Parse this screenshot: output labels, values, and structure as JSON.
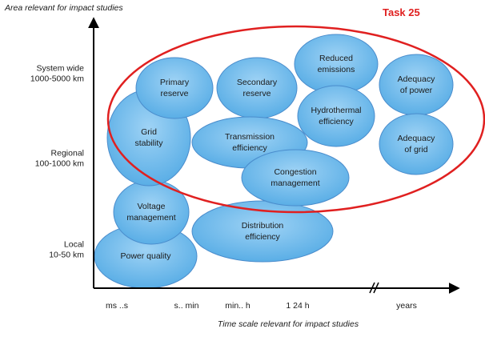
{
  "y_axis": {
    "title": "Area relevant for impact studies",
    "levels": [
      [
        "System wide",
        "1000-5000 km"
      ],
      [
        "Regional",
        "100-1000 km"
      ],
      [
        "Local",
        "10-50 km"
      ]
    ]
  },
  "x_axis": {
    "title": "Time scale relevant for impact studies",
    "levels": [
      "ms ..s",
      "s.. min",
      "min.. h",
      "1   24 h",
      "years"
    ]
  },
  "highlight": {
    "label": "Task 25"
  },
  "nodes": [
    {
      "label": [
        "Power quality"
      ]
    },
    {
      "label": [
        "Voltage",
        "management"
      ]
    },
    {
      "label": [
        "Distribution",
        "efficiency"
      ]
    },
    {
      "label": [
        "Grid",
        "stability"
      ]
    },
    {
      "label": [
        "Primary",
        "reserve"
      ]
    },
    {
      "label": [
        "Secondary",
        "reserve"
      ]
    },
    {
      "label": [
        "Transmission",
        "efficiency"
      ]
    },
    {
      "label": [
        "Congestion",
        "management"
      ]
    },
    {
      "label": [
        "Reduced",
        "emissions"
      ]
    },
    {
      "label": [
        "Hydrothermal",
        "efficiency"
      ]
    },
    {
      "label": [
        "Adequacy",
        "of power"
      ]
    },
    {
      "label": [
        "Adequacy",
        "of grid"
      ]
    }
  ]
}
